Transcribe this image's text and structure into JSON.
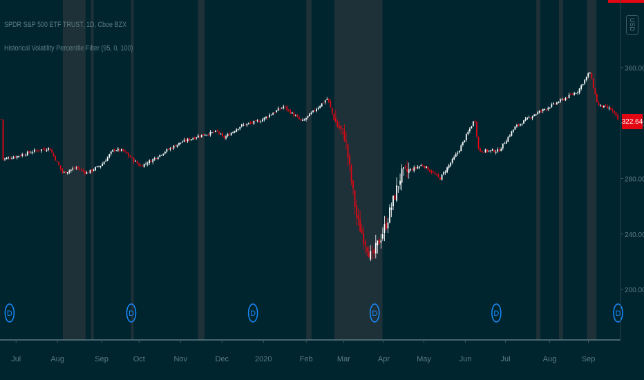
{
  "legend": {
    "symbol": "SPDR S&P 500 ETF TRUST, 1D, Cboe BZX",
    "indicator": "Historical Volatility Percentile Filter (95, 0, 100)"
  },
  "currency_label": "USD",
  "last_price_label": "322.64",
  "colors": {
    "background": "#00252f",
    "up": "#ffffff",
    "down": "#e30613",
    "highlight": "#1e3138",
    "dividend_marker": "#1a8cff",
    "axis_text": "#5d7b83"
  },
  "chart_data": {
    "type": "candlestick",
    "title": "SPDR S&P 500 ETF TRUST, 1D, Cboe BZX",
    "y_ticks": [
      200,
      240,
      280,
      320,
      360
    ],
    "ylim": [
      180,
      380
    ],
    "x_ticks": [
      "Jul",
      "Aug",
      "Sep",
      "Oct",
      "Nov",
      "Dec",
      "2020",
      "Feb",
      "Mar",
      "Apr",
      "May",
      "Jun",
      "Jul",
      "Aug",
      "Sep"
    ],
    "dividend_markers": [
      "D",
      "D",
      "D",
      "D",
      "D",
      "D"
    ],
    "close_path": [
      [
        "2019-06-21",
        294
      ],
      [
        "2019-07-01",
        296
      ],
      [
        "2019-07-15",
        300
      ],
      [
        "2019-07-26",
        302
      ],
      [
        "2019-08-05",
        284
      ],
      [
        "2019-08-15",
        288
      ],
      [
        "2019-08-23",
        284
      ],
      [
        "2019-09-03",
        290
      ],
      [
        "2019-09-12",
        301
      ],
      [
        "2019-09-19",
        300
      ],
      [
        "2019-10-02",
        289
      ],
      [
        "2019-10-10",
        293
      ],
      [
        "2019-10-21",
        300
      ],
      [
        "2019-11-01",
        306
      ],
      [
        "2019-11-15",
        311
      ],
      [
        "2019-11-29",
        314
      ],
      [
        "2019-12-03",
        309
      ],
      [
        "2019-12-16",
        318
      ],
      [
        "2019-12-31",
        322
      ],
      [
        "2020-01-17",
        332
      ],
      [
        "2020-01-31",
        321
      ],
      [
        "2020-02-19",
        338
      ],
      [
        "2020-02-24",
        322
      ],
      [
        "2020-03-03",
        310
      ],
      [
        "2020-03-12",
        250
      ],
      [
        "2020-03-23",
        222
      ],
      [
        "2020-04-03",
        248
      ],
      [
        "2020-04-14",
        283
      ],
      [
        "2020-04-30",
        290
      ],
      [
        "2020-05-13",
        280
      ],
      [
        "2020-05-27",
        300
      ],
      [
        "2020-06-08",
        323
      ],
      [
        "2020-06-11",
        300
      ],
      [
        "2020-06-26",
        300
      ],
      [
        "2020-07-08",
        317
      ],
      [
        "2020-07-22",
        326
      ],
      [
        "2020-08-07",
        334
      ],
      [
        "2020-08-24",
        343
      ],
      [
        "2020-09-02",
        357
      ],
      [
        "2020-09-08",
        333
      ],
      [
        "2020-09-18",
        330
      ],
      [
        "2020-09-23",
        322.64
      ]
    ],
    "highlight_periods": [
      [
        "2019-08-05",
        "2019-08-22"
      ],
      [
        "2019-08-26",
        "2019-08-27"
      ],
      [
        "2019-09-25",
        "2019-09-26"
      ],
      [
        "2019-11-14",
        "2019-11-19"
      ],
      [
        "2020-02-03",
        "2020-02-07"
      ],
      [
        "2020-02-24",
        "2020-03-31"
      ],
      [
        "2020-07-24",
        "2020-07-27"
      ],
      [
        "2020-08-10",
        "2020-08-13"
      ],
      [
        "2020-08-31",
        "2020-09-07"
      ]
    ]
  }
}
